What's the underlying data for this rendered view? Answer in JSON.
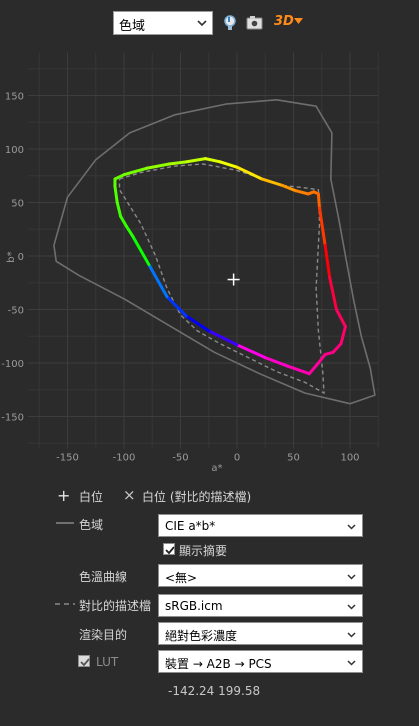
{
  "toolbar": {
    "view_select": "色域",
    "icons": [
      "bulb-icon",
      "camera-icon",
      "3d-menu-icon"
    ],
    "three_d_label": "3D"
  },
  "chart_data": {
    "type": "scatter",
    "xlabel": "a*",
    "ylabel": "b*",
    "x_ticks": [
      -150,
      -100,
      -50,
      0,
      50,
      100
    ],
    "y_ticks": [
      150,
      100,
      50,
      0,
      -50,
      -100,
      -150
    ],
    "xlim": [
      -185,
      125
    ],
    "ylim": [
      -180,
      190
    ],
    "grid": true,
    "series": [
      {
        "style": "rainbow-solid",
        "points": [
          [
            -108,
            72
          ],
          [
            -100,
            76
          ],
          [
            -80,
            82
          ],
          [
            -60,
            86
          ],
          [
            -45,
            88
          ],
          [
            -28,
            91
          ],
          [
            -15,
            88
          ],
          [
            0,
            83
          ],
          [
            22,
            72
          ],
          [
            40,
            66
          ],
          [
            52,
            61
          ],
          [
            63,
            58
          ],
          [
            68,
            60
          ],
          [
            72,
            58
          ],
          [
            73,
            45
          ],
          [
            78,
            10
          ],
          [
            82,
            -20
          ],
          [
            88,
            -50
          ],
          [
            96,
            -66
          ],
          [
            92,
            -82
          ],
          [
            85,
            -90
          ],
          [
            78,
            -92
          ],
          [
            72,
            -100
          ],
          [
            64,
            -110
          ],
          [
            45,
            -103
          ],
          [
            25,
            -95
          ],
          [
            0,
            -83
          ],
          [
            -25,
            -70
          ],
          [
            -45,
            -56
          ],
          [
            -62,
            -38
          ],
          [
            -78,
            -8
          ],
          [
            -92,
            18
          ],
          [
            -98,
            28
          ],
          [
            -103,
            37
          ],
          [
            -106,
            50
          ],
          [
            -108,
            65
          ],
          [
            -108,
            72
          ]
        ]
      },
      {
        "style": "gray-dashed",
        "points": [
          [
            -104,
            72
          ],
          [
            -85,
            78
          ],
          [
            -55,
            84
          ],
          [
            -30,
            86
          ],
          [
            0,
            80
          ],
          [
            20,
            73
          ],
          [
            40,
            66
          ],
          [
            58,
            64
          ],
          [
            72,
            62
          ],
          [
            73,
            30
          ],
          [
            70,
            -30
          ],
          [
            72,
            -70
          ],
          [
            76,
            -110
          ],
          [
            77,
            -128
          ],
          [
            60,
            -118
          ],
          [
            35,
            -108
          ],
          [
            10,
            -95
          ],
          [
            -15,
            -82
          ],
          [
            -35,
            -70
          ],
          [
            -50,
            -55
          ],
          [
            -62,
            -30
          ],
          [
            -72,
            0
          ],
          [
            -85,
            30
          ],
          [
            -98,
            52
          ],
          [
            -104,
            62
          ],
          [
            -104,
            72
          ]
        ]
      },
      {
        "style": "gray-outline",
        "points": [
          [
            -162,
            10
          ],
          [
            -150,
            55
          ],
          [
            -125,
            90
          ],
          [
            -95,
            115
          ],
          [
            -55,
            132
          ],
          [
            -10,
            142
          ],
          [
            35,
            146
          ],
          [
            70,
            140
          ],
          [
            84,
            115
          ],
          [
            83,
            72
          ],
          [
            90,
            35
          ],
          [
            96,
            0
          ],
          [
            103,
            -40
          ],
          [
            110,
            -75
          ],
          [
            118,
            -105
          ],
          [
            122,
            -130
          ],
          [
            100,
            -138
          ],
          [
            60,
            -128
          ],
          [
            20,
            -110
          ],
          [
            -20,
            -90
          ],
          [
            -60,
            -65
          ],
          [
            -100,
            -40
          ],
          [
            -140,
            -18
          ],
          [
            -160,
            -5
          ],
          [
            -162,
            10
          ]
        ]
      }
    ],
    "markers": [
      {
        "type": "white-point",
        "x": -3,
        "y": -22
      }
    ]
  },
  "controls": {
    "white_point": {
      "symbol": "+",
      "label": "白位"
    },
    "compare_white_point": {
      "symbol": "×",
      "label": "白位 (對比的描述檔)"
    },
    "gamut": {
      "label": "色域",
      "value": "CIE a*b*"
    },
    "show_summary": {
      "label": "顯示摘要",
      "checked": true
    },
    "tone_curve": {
      "label": "色溫曲線",
      "value": "<無>"
    },
    "compare_profile": {
      "label": "對比的描述檔",
      "value": "sRGB.icm"
    },
    "rendering_intent": {
      "label": "渲染目的",
      "value": "絕對色彩濃度"
    },
    "lut": {
      "label": "LUT",
      "checked": true,
      "value": "裝置 → A2B → PCS"
    }
  },
  "status": {
    "coords": "-142.24 199.58"
  }
}
